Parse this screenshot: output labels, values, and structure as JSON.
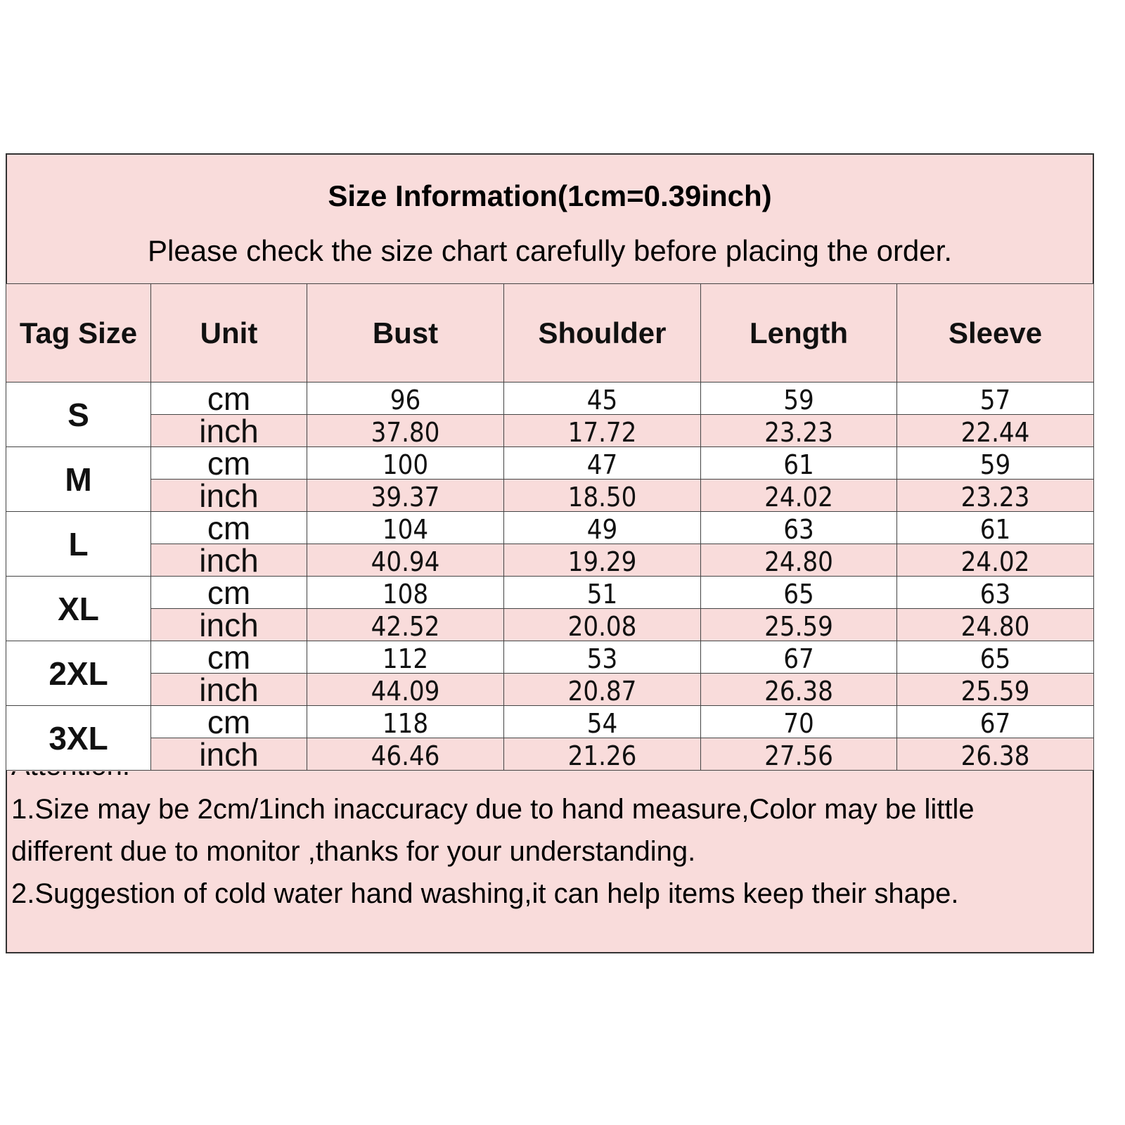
{
  "header": {
    "title": "Size Information(1cm=0.39inch)",
    "subtitle": "Please check the size chart carefully before placing the order."
  },
  "table": {
    "columns": [
      "Tag Size",
      "Unit",
      "Bust",
      "Shoulder",
      "Length",
      "Sleeve"
    ],
    "rows": [
      {
        "size": "S",
        "lines": [
          [
            "cm",
            "96",
            "45",
            "59",
            "57"
          ],
          [
            "inch",
            "37.80",
            "17.72",
            "23.23",
            "22.44"
          ]
        ]
      },
      {
        "size": "M",
        "lines": [
          [
            "cm",
            "100",
            "47",
            "61",
            "59"
          ],
          [
            "inch",
            "39.37",
            "18.50",
            "24.02",
            "23.23"
          ]
        ]
      },
      {
        "size": "L",
        "lines": [
          [
            "cm",
            "104",
            "49",
            "63",
            "61"
          ],
          [
            "inch",
            "40.94",
            "19.29",
            "24.80",
            "24.02"
          ]
        ]
      },
      {
        "size": "XL",
        "lines": [
          [
            "cm",
            "108",
            "51",
            "65",
            "63"
          ],
          [
            "inch",
            "42.52",
            "20.08",
            "25.59",
            "24.80"
          ]
        ]
      },
      {
        "size": "2XL",
        "lines": [
          [
            "cm",
            "112",
            "53",
            "67",
            "65"
          ],
          [
            "inch",
            "44.09",
            "20.87",
            "26.38",
            "25.59"
          ]
        ]
      },
      {
        "size": "3XL",
        "lines": [
          [
            "cm",
            "118",
            "54",
            "70",
            "67"
          ],
          [
            "inch",
            "46.46",
            "21.26",
            "27.56",
            "26.38"
          ]
        ]
      }
    ]
  },
  "notes": {
    "heading": "Attention:",
    "items": [
      "1.Size may be 2cm/1inch inaccuracy due to hand measure,Color may be little different due to monitor ,thanks for your understanding.",
      "2.Suggestion of cold water hand washing,it can help items keep their shape."
    ]
  }
}
